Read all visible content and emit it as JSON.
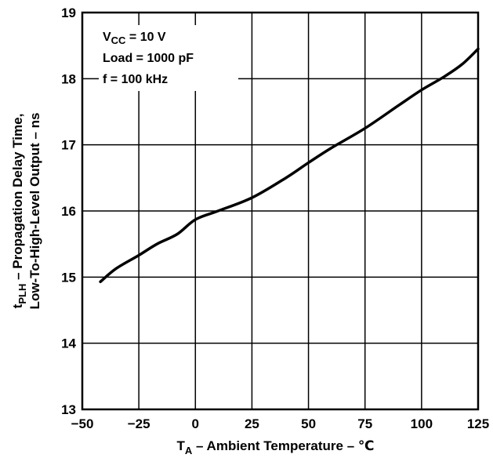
{
  "chart_data": {
    "type": "line",
    "x_ticks": [
      "−50",
      "−25",
      "0",
      "25",
      "50",
      "75",
      "100",
      "125"
    ],
    "y_ticks": [
      "13",
      "14",
      "15",
      "16",
      "17",
      "18",
      "19"
    ],
    "xlim": [
      -50,
      125
    ],
    "ylim": [
      13,
      19
    ],
    "grid": true,
    "x_title": {
      "main": "T",
      "sub": "A",
      "rest": " – Ambient Temperature – ℃"
    },
    "y_title": {
      "line1_prefix": "t",
      "line1_sub": "PLH",
      "line1_rest": " – Propagation Delay Time,",
      "line2": "Low-To-High-Level Output – ns"
    },
    "annotations": {
      "vcc_main": "V",
      "vcc_sub": "CC",
      "vcc_rest": " = 10 V",
      "load": "Load = 1000 pF",
      "freq": "f = 100 kHz"
    },
    "series": [
      {
        "color": "#000000",
        "x": [
          -42,
          -35,
          -25,
          -17,
          -8,
          0,
          10,
          25,
          40,
          50,
          60,
          75,
          90,
          100,
          110,
          118,
          125
        ],
        "y": [
          14.93,
          15.13,
          15.33,
          15.5,
          15.65,
          15.87,
          16.0,
          16.2,
          16.5,
          16.73,
          16.95,
          17.25,
          17.6,
          17.83,
          18.03,
          18.22,
          18.45
        ]
      }
    ]
  }
}
